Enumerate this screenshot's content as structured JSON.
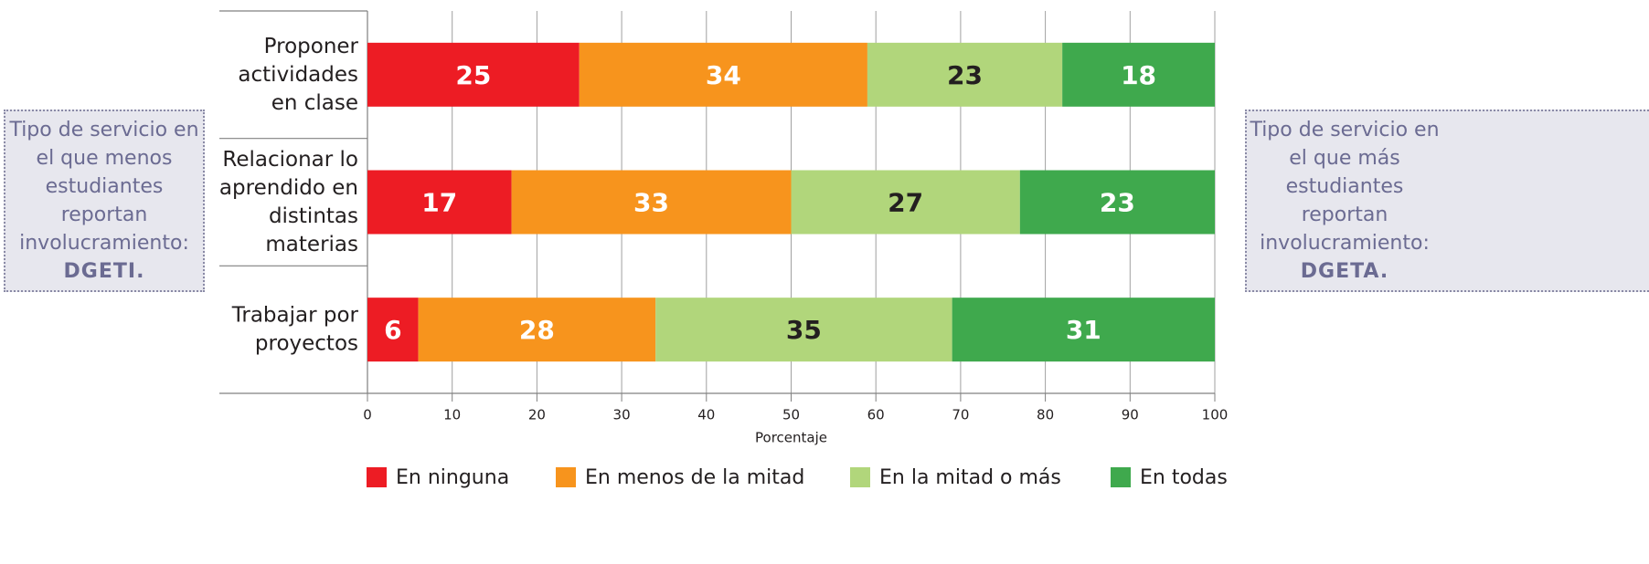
{
  "chart_data": {
    "type": "stacked_barh",
    "categories": [
      "Proponer actividades en clase",
      "Relacionar lo aprendido en distintas materias",
      "Trabajar por proyectos"
    ],
    "series": [
      {
        "name": "En ninguna",
        "color": "#ed1c24",
        "label_color": "#ffffff",
        "values": [
          25,
          17,
          6
        ]
      },
      {
        "name": "En menos de la mitad",
        "color": "#f7941d",
        "label_color": "#ffffff",
        "values": [
          34,
          33,
          28
        ]
      },
      {
        "name": "En la mitad o más",
        "color": "#b1d67b",
        "label_color": "#231f20",
        "values": [
          23,
          27,
          35
        ]
      },
      {
        "name": "En todas",
        "color": "#3fa94d",
        "label_color": "#ffffff",
        "values": [
          18,
          23,
          31
        ]
      }
    ],
    "xlabel": "Porcentaje",
    "xlim": [
      0,
      100
    ],
    "xticks": [
      0,
      10,
      20,
      30,
      40,
      50,
      60,
      70,
      80,
      90,
      100
    ],
    "grid": true,
    "legend": "bottom",
    "annotations": [
      {
        "text": "Tipo de servicio en el que menos estudiantes reportan involucramiento:",
        "bold": "DGETI."
      },
      {
        "text": "Tipo de servicio en el que más estudiantes reportan involucramiento:",
        "bold": "DGETA."
      }
    ]
  }
}
